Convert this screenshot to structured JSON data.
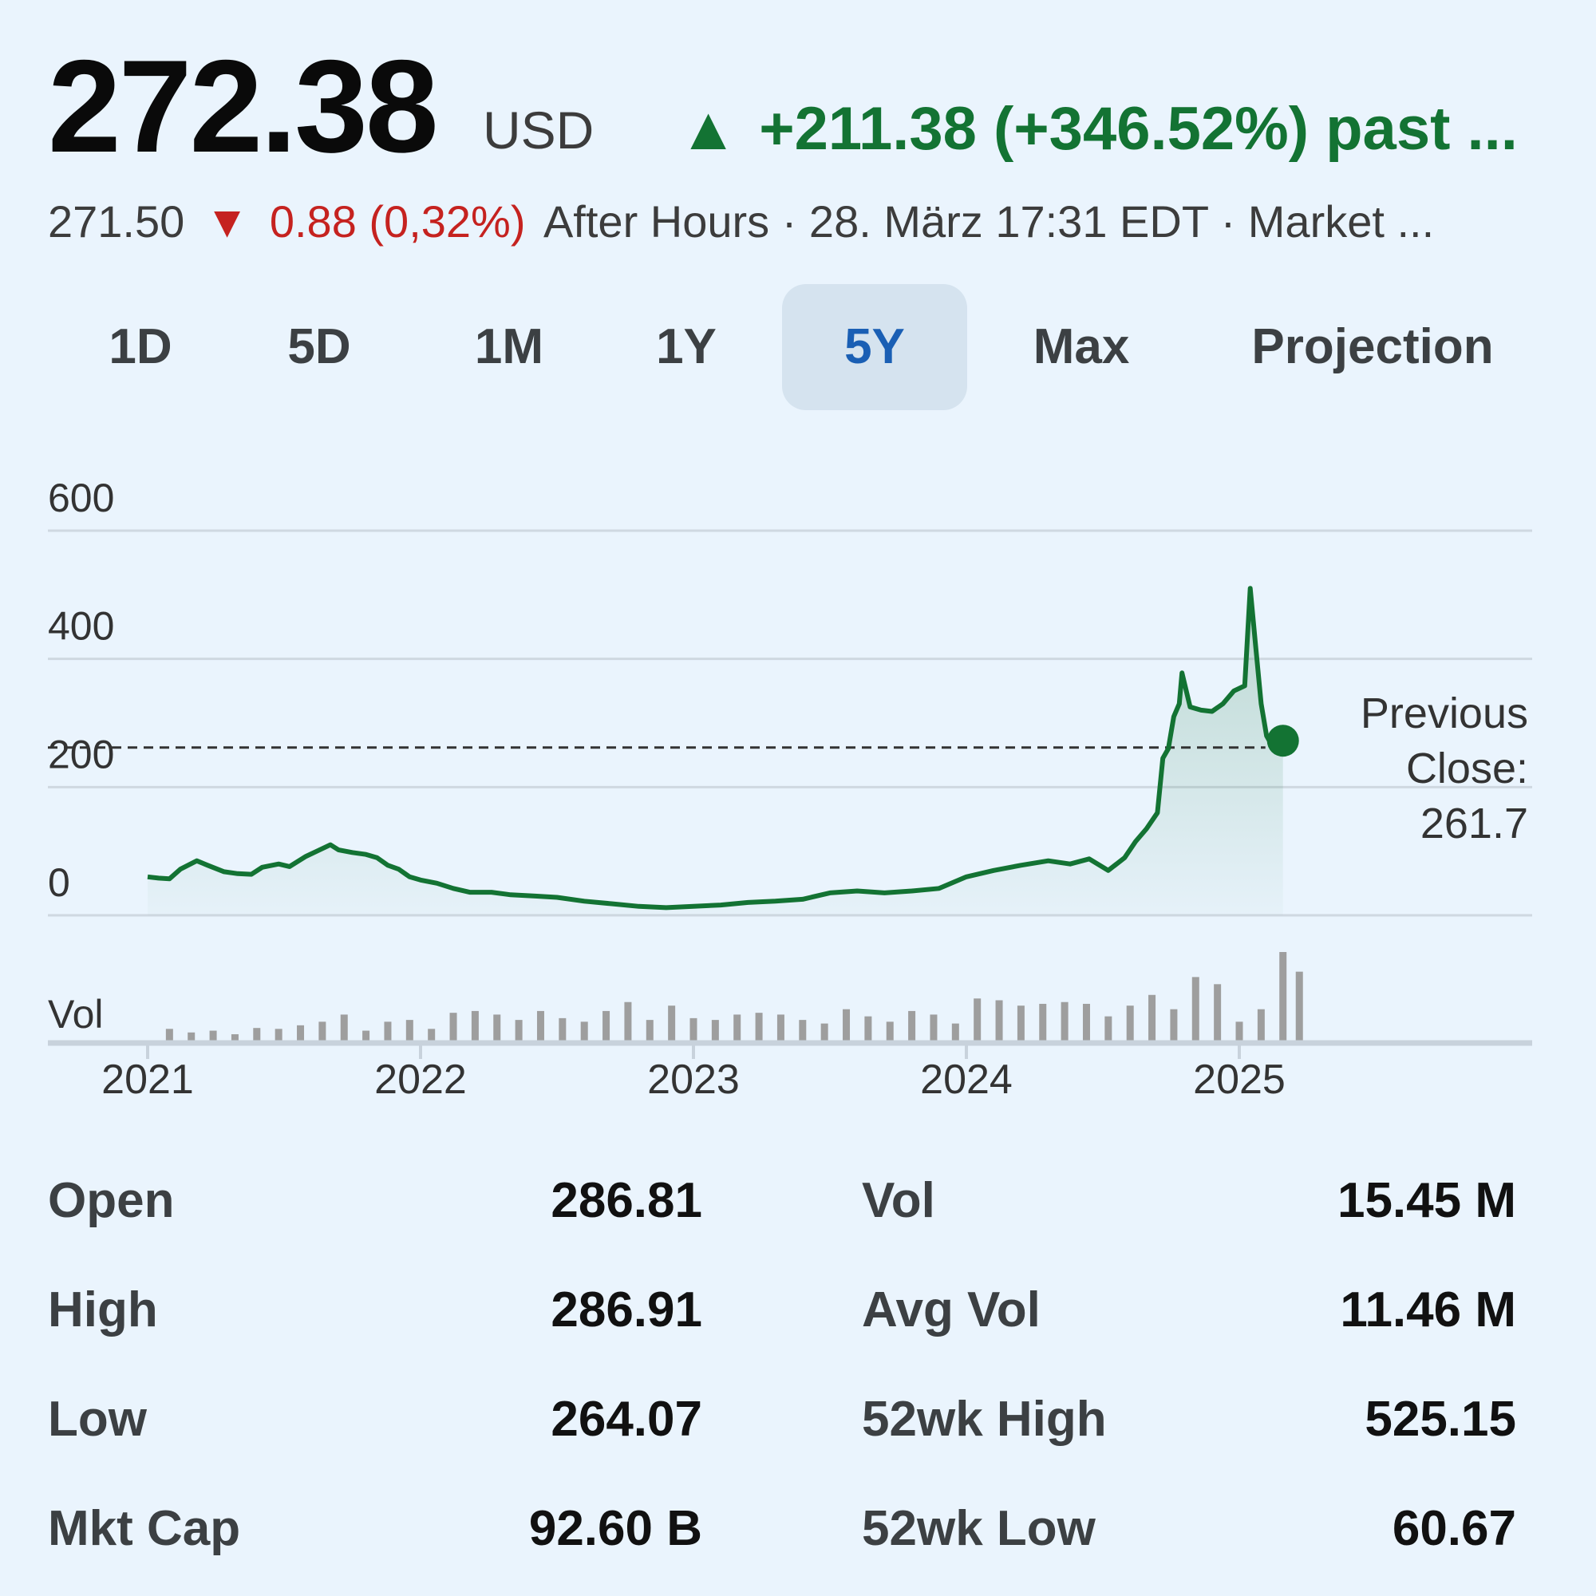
{
  "header": {
    "price": "272.38",
    "currency": "USD",
    "change_arrow": "▲",
    "change": "+211.38 (+346.52%) past ...",
    "after_hours_price": "271.50",
    "after_hours_arrow": "▼",
    "after_hours_change": "0.88 (0,32%)",
    "after_hours_info": "After Hours · 28. März 17:31 EDT · Market ..."
  },
  "tabs": [
    {
      "label": "1D"
    },
    {
      "label": "5D"
    },
    {
      "label": "1M"
    },
    {
      "label": "1Y"
    },
    {
      "label": "5Y",
      "active": true
    },
    {
      "label": "Max"
    },
    {
      "label": "Projection"
    }
  ],
  "colors": {
    "up": "#137333",
    "down": "#c5221f",
    "active_tab": "#1a5fb4",
    "volume_bar": "#9e9e9e"
  },
  "chart_data": {
    "type": "line",
    "y_ticks": [
      "600",
      "400",
      "200",
      "0"
    ],
    "ylim": [
      0,
      600
    ],
    "x_ticks": [
      "2021",
      "2022",
      "2023",
      "2024",
      "2025"
    ],
    "xlim": [
      2021.0,
      2026.0
    ],
    "volume_label": "Vol",
    "previous_close": 261.7,
    "previous_close_label": [
      "Previous",
      "Close:",
      "261.7"
    ],
    "series": [
      {
        "points": [
          [
            2021.0,
            60
          ],
          [
            2021.04,
            58
          ],
          [
            2021.08,
            57
          ],
          [
            2021.12,
            72
          ],
          [
            2021.18,
            85
          ],
          [
            2021.22,
            78
          ],
          [
            2021.28,
            68
          ],
          [
            2021.33,
            65
          ],
          [
            2021.38,
            64
          ],
          [
            2021.42,
            75
          ],
          [
            2021.48,
            80
          ],
          [
            2021.52,
            76
          ],
          [
            2021.58,
            92
          ],
          [
            2021.62,
            100
          ],
          [
            2021.67,
            110
          ],
          [
            2021.7,
            102
          ],
          [
            2021.75,
            98
          ],
          [
            2021.8,
            95
          ],
          [
            2021.84,
            90
          ],
          [
            2021.88,
            78
          ],
          [
            2021.92,
            72
          ],
          [
            2021.96,
            60
          ],
          [
            2022.0,
            55
          ],
          [
            2022.06,
            50
          ],
          [
            2022.12,
            42
          ],
          [
            2022.18,
            36
          ],
          [
            2022.26,
            36
          ],
          [
            2022.33,
            32
          ],
          [
            2022.42,
            30
          ],
          [
            2022.5,
            28
          ],
          [
            2022.6,
            22
          ],
          [
            2022.7,
            18
          ],
          [
            2022.8,
            14
          ],
          [
            2022.9,
            12
          ],
          [
            2023.0,
            14
          ],
          [
            2023.1,
            16
          ],
          [
            2023.2,
            20
          ],
          [
            2023.3,
            22
          ],
          [
            2023.4,
            25
          ],
          [
            2023.5,
            35
          ],
          [
            2023.6,
            38
          ],
          [
            2023.7,
            35
          ],
          [
            2023.8,
            38
          ],
          [
            2023.9,
            42
          ],
          [
            2024.0,
            60
          ],
          [
            2024.1,
            70
          ],
          [
            2024.2,
            78
          ],
          [
            2024.3,
            85
          ],
          [
            2024.38,
            80
          ],
          [
            2024.45,
            88
          ],
          [
            2024.52,
            70
          ],
          [
            2024.58,
            90
          ],
          [
            2024.62,
            115
          ],
          [
            2024.66,
            135
          ],
          [
            2024.7,
            160
          ],
          [
            2024.72,
            245
          ],
          [
            2024.74,
            260
          ],
          [
            2024.76,
            310
          ],
          [
            2024.78,
            330
          ],
          [
            2024.79,
            378
          ],
          [
            2024.82,
            325
          ],
          [
            2024.86,
            320
          ],
          [
            2024.9,
            318
          ],
          [
            2024.94,
            330
          ],
          [
            2024.98,
            350
          ],
          [
            2025.02,
            358
          ],
          [
            2025.04,
            510
          ],
          [
            2025.06,
            420
          ],
          [
            2025.08,
            330
          ],
          [
            2025.1,
            280
          ],
          [
            2025.12,
            265
          ],
          [
            2025.14,
            275
          ],
          [
            2025.16,
            272.38
          ]
        ]
      }
    ],
    "volume": [
      {
        "x": 2021.08,
        "v": 14
      },
      {
        "x": 2021.16,
        "v": 10
      },
      {
        "x": 2021.24,
        "v": 12
      },
      {
        "x": 2021.32,
        "v": 8
      },
      {
        "x": 2021.4,
        "v": 15
      },
      {
        "x": 2021.48,
        "v": 14
      },
      {
        "x": 2021.56,
        "v": 18
      },
      {
        "x": 2021.64,
        "v": 22
      },
      {
        "x": 2021.72,
        "v": 30
      },
      {
        "x": 2021.8,
        "v": 12
      },
      {
        "x": 2021.88,
        "v": 22
      },
      {
        "x": 2021.96,
        "v": 24
      },
      {
        "x": 2022.04,
        "v": 14
      },
      {
        "x": 2022.12,
        "v": 32
      },
      {
        "x": 2022.2,
        "v": 34
      },
      {
        "x": 2022.28,
        "v": 30
      },
      {
        "x": 2022.36,
        "v": 24
      },
      {
        "x": 2022.44,
        "v": 34
      },
      {
        "x": 2022.52,
        "v": 26
      },
      {
        "x": 2022.6,
        "v": 22
      },
      {
        "x": 2022.68,
        "v": 34
      },
      {
        "x": 2022.76,
        "v": 44
      },
      {
        "x": 2022.84,
        "v": 24
      },
      {
        "x": 2022.92,
        "v": 40
      },
      {
        "x": 2023.0,
        "v": 26
      },
      {
        "x": 2023.08,
        "v": 24
      },
      {
        "x": 2023.16,
        "v": 30
      },
      {
        "x": 2023.24,
        "v": 32
      },
      {
        "x": 2023.32,
        "v": 30
      },
      {
        "x": 2023.4,
        "v": 24
      },
      {
        "x": 2023.48,
        "v": 20
      },
      {
        "x": 2023.56,
        "v": 36
      },
      {
        "x": 2023.64,
        "v": 28
      },
      {
        "x": 2023.72,
        "v": 22
      },
      {
        "x": 2023.8,
        "v": 34
      },
      {
        "x": 2023.88,
        "v": 30
      },
      {
        "x": 2023.96,
        "v": 20
      },
      {
        "x": 2024.04,
        "v": 48
      },
      {
        "x": 2024.12,
        "v": 46
      },
      {
        "x": 2024.2,
        "v": 40
      },
      {
        "x": 2024.28,
        "v": 42
      },
      {
        "x": 2024.36,
        "v": 44
      },
      {
        "x": 2024.44,
        "v": 42
      },
      {
        "x": 2024.52,
        "v": 28
      },
      {
        "x": 2024.6,
        "v": 40
      },
      {
        "x": 2024.68,
        "v": 52
      },
      {
        "x": 2024.76,
        "v": 36
      },
      {
        "x": 2024.84,
        "v": 72
      },
      {
        "x": 2024.92,
        "v": 64
      },
      {
        "x": 2025.0,
        "v": 22
      },
      {
        "x": 2025.08,
        "v": 36
      },
      {
        "x": 2025.16,
        "v": 100
      },
      {
        "x": 2025.22,
        "v": 78
      }
    ]
  },
  "stats": [
    {
      "label": "Open",
      "value": "286.81",
      "label2": "Vol",
      "value2": "15.45 M"
    },
    {
      "label": "High",
      "value": "286.91",
      "label2": "Avg Vol",
      "value2": "11.46 M"
    },
    {
      "label": "Low",
      "value": "264.07",
      "label2": "52wk High",
      "value2": "525.15"
    },
    {
      "label": "Mkt Cap",
      "value": "92.60 B",
      "label2": "52wk Low",
      "value2": "60.67"
    }
  ]
}
